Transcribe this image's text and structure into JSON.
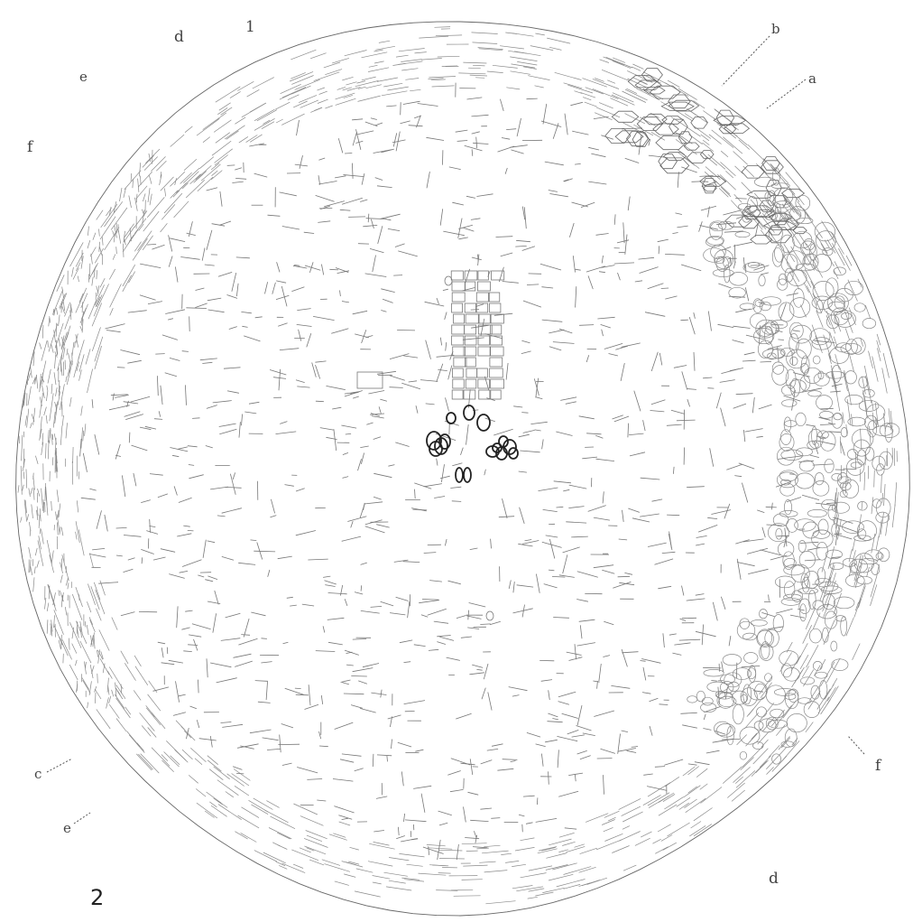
{
  "figure": {
    "plate_number": "2",
    "labels": {
      "a": "a",
      "b": "b",
      "c": "c",
      "d_top": "d",
      "d_bottom": "d",
      "e_top": "e",
      "e_bottom": "e",
      "f_left": "f",
      "f_right": "f",
      "one": "1"
    }
  },
  "colors": {
    "ink": "#555555",
    "dark_ink": "#222222",
    "paper": "#ffffff"
  }
}
